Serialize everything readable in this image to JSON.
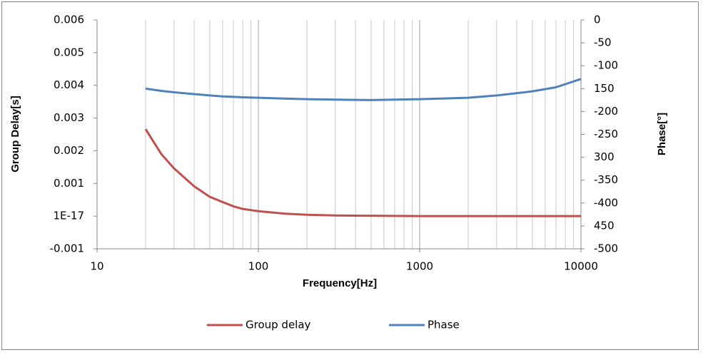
{
  "chart_data": {
    "type": "line",
    "xlabel": "Frequency[Hz]",
    "ylabel": "Group Delay[s]",
    "y2label": "Phase[°]",
    "xscale": "log",
    "grid": true,
    "legend": "bottom",
    "x": [
      20,
      25,
      30,
      40,
      50,
      60,
      70,
      80,
      100,
      150,
      200,
      300,
      500,
      1000,
      2000,
      3000,
      5000,
      7000,
      10000
    ],
    "series": [
      {
        "name": "Group delay",
        "color": "#c0504d",
        "axis": "y",
        "values": [
          0.00266,
          0.0019,
          0.00146,
          0.00091,
          0.00059,
          0.00043,
          0.0003,
          0.00022,
          0.00015,
          7e-05,
          4e-05,
          2e-05,
          1e-05,
          0,
          0,
          0,
          0,
          0,
          0
        ]
      },
      {
        "name": "Phase",
        "color": "#4f81bd",
        "axis": "y2",
        "values": [
          -150,
          -155,
          -158,
          -162,
          -165,
          -167,
          -168,
          -169,
          -170,
          -172,
          -173,
          -174,
          -175,
          -173,
          -170,
          -165,
          -156,
          -147,
          -129
        ]
      }
    ],
    "xlim": [
      10,
      10000
    ],
    "xticks": [
      10,
      100,
      1000,
      10000
    ],
    "ylim": [
      -0.001,
      0.006
    ],
    "yticks": [
      -0.001,
      {
        "value": 1e-17,
        "label": "1E-17"
      },
      0.001,
      0.002,
      0.003,
      0.004,
      0.005,
      0.006
    ],
    "y2lim": [
      -500,
      0
    ],
    "y2ticks": [
      0,
      -50,
      -100,
      {
        "value": -150,
        "label": "150"
      },
      -200,
      -250,
      {
        "value": -300,
        "label": "300"
      },
      -350,
      -400,
      {
        "value": -450,
        "label": "450"
      },
      -500
    ]
  }
}
